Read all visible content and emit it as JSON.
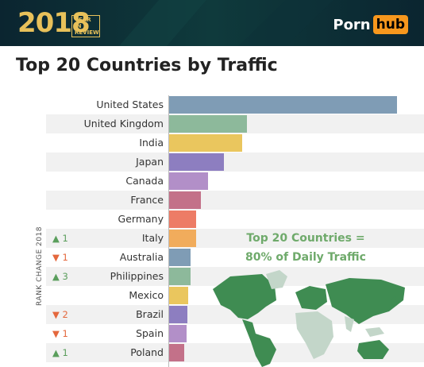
{
  "header": {
    "year": "2018",
    "year_in_review": "YEAR IN REVIEW",
    "brand_porn": "Porn",
    "brand_hub": "hub"
  },
  "page_title": "Top 20 Countries by Traffic",
  "side_axis_label": "RANK CHANGE 2018",
  "callout": {
    "line1": "Top 20 Countries =",
    "line2": "80% of Daily Traffic"
  },
  "colors": {
    "header_bg": "#0b2530",
    "accent": "#e8c15a",
    "brand_orange": "#f7971d",
    "up": "#5a9e5c",
    "down": "#e4683d",
    "map_green": "#3f8c52",
    "map_light": "#c3d6c9"
  },
  "chart_data": {
    "type": "bar",
    "orientation": "horizontal",
    "title": "Top 20 Countries by Traffic",
    "categories": [
      "United States",
      "United Kingdom",
      "India",
      "Japan",
      "Canada",
      "France",
      "Germany",
      "Italy",
      "Australia",
      "Philippines",
      "Mexico",
      "Brazil",
      "Spain",
      "Poland"
    ],
    "values": [
      100,
      34,
      32,
      24,
      17,
      14,
      12,
      12,
      9.5,
      9.5,
      8.5,
      8,
      7.5,
      6.5
    ],
    "rank_change": [
      "",
      "",
      "",
      "",
      "",
      "",
      "",
      "▲ 1",
      "▼ 1",
      "▲ 3",
      "",
      "▼ 2",
      "▼ 1",
      "▲ 1"
    ],
    "rank_direction": [
      "",
      "",
      "",
      "",
      "",
      "",
      "",
      "up",
      "down",
      "up",
      "",
      "down",
      "down",
      "up"
    ],
    "bar_colors": [
      "#7f9cb5",
      "#8db99b",
      "#eac65e",
      "#8d7ec0",
      "#b28fc8",
      "#c37189",
      "#ed7c66",
      "#f1ac5c",
      "#7f9cb5",
      "#8db99b",
      "#eac65e",
      "#8d7ec0",
      "#b28fc8",
      "#c37189"
    ],
    "xlabel": "",
    "ylabel": ""
  }
}
